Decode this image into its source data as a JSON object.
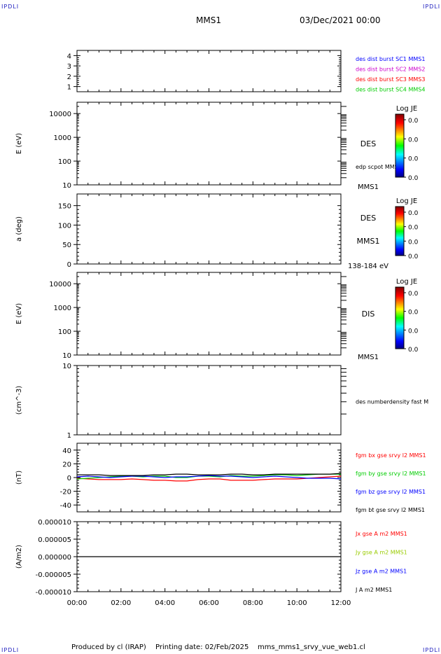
{
  "corner_tl": "IPDLI",
  "corner_tr": "IPDLI",
  "corner_bl": "IPDLI",
  "corner_br": "IPDLI",
  "header": {
    "spacecraft": "MMS1",
    "datetime": "03/Dec/2021 00:00"
  },
  "footer": {
    "produced": "Produced by cl (IRAP)",
    "printed": "Printing date: 02/Feb/2025",
    "file": "mms_mms1_srvy_vue_web1.cl"
  },
  "colors": {
    "blue": "#0000ff",
    "magenta": "#cc00cc",
    "red": "#ff0000",
    "green": "#00cc00",
    "black": "#000000"
  },
  "chart_data": [
    {
      "type": "line",
      "ylim": [
        0.5,
        4.5
      ],
      "yticks": [
        "4",
        "3",
        "2",
        "1"
      ],
      "series": [
        {
          "name": "des dist burst SC1 MMS1",
          "color": "#0000ff"
        },
        {
          "name": "des dist burst SC2 MMS2",
          "color": "#cc00cc"
        },
        {
          "name": "des dist burst SC3 MMS3",
          "color": "#ff0000"
        },
        {
          "name": "des dist burst SC4 MMS4",
          "color": "#00cc00"
        }
      ]
    },
    {
      "type": "heatmap",
      "ylabel": "E (eV)",
      "log": true,
      "ylim": [
        10,
        30000
      ],
      "yticks": [
        "10000",
        "1000",
        "100",
        "10"
      ],
      "side_label": "DES",
      "overlay_label": "edp scpot MMS1",
      "bottom_label": "MMS1",
      "colorbar": {
        "title": "Log JE",
        "ticks": [
          "0.0",
          "0.0",
          "0.0",
          "0.0"
        ]
      }
    },
    {
      "type": "heatmap",
      "ylabel": "a (deg)",
      "ylim": [
        0,
        180
      ],
      "yticks": [
        "150",
        "100",
        "50",
        "0"
      ],
      "side_label": "DES",
      "side_label2": "MMS1",
      "bottom_label": "138-184 eV",
      "colorbar": {
        "title": "Log JE",
        "ticks": [
          "0.0",
          "0.0",
          "0.0",
          "0.0"
        ]
      }
    },
    {
      "type": "heatmap",
      "ylabel": "E (eV)",
      "log": true,
      "ylim": [
        10,
        30000
      ],
      "yticks": [
        "10000",
        "1000",
        "100",
        "10"
      ],
      "side_label": "DIS",
      "bottom_label": "MMS1",
      "colorbar": {
        "title": "Log JE",
        "ticks": [
          "0.0",
          "0.0",
          "0.0",
          "0.0"
        ]
      }
    },
    {
      "type": "line",
      "ylabel": "(cm^-3)",
      "log": true,
      "ylim": [
        1,
        10
      ],
      "yticks": [
        "10",
        "1"
      ],
      "series": [
        {
          "name": "des numberdensity fast M",
          "color": "#000000"
        }
      ]
    },
    {
      "type": "line",
      "ylabel": "(nT)",
      "ylim": [
        -50,
        50
      ],
      "yticks": [
        "40",
        "20",
        "0",
        "-20",
        "-40"
      ],
      "series": [
        {
          "name": "fgm bx gse srvy l2 MMS1",
          "color": "#ff0000",
          "x": [
            0,
            0.5,
            1,
            1.5,
            2,
            2.5,
            3,
            3.5,
            4,
            4.5,
            5,
            5.5,
            6,
            6.5,
            7,
            7.5,
            8,
            8.5,
            9,
            9.5,
            10,
            10.5,
            11,
            11.5,
            12
          ],
          "values": [
            -1,
            -2,
            -3,
            -3,
            -3,
            -2,
            -3,
            -4,
            -4,
            -5,
            -5,
            -3,
            -2,
            -2,
            -4,
            -4,
            -4,
            -3,
            -2,
            -2,
            -2,
            -1,
            0,
            1,
            2
          ]
        },
        {
          "name": "fgm by gse srvy l2 MMS1",
          "color": "#00cc00",
          "x": [
            0,
            0.5,
            1,
            1.5,
            2,
            2.5,
            3,
            3.5,
            4,
            4.5,
            5,
            5.5,
            6,
            6.5,
            7,
            7.5,
            8,
            8.5,
            9,
            9.5,
            10,
            10.5,
            11,
            11.5,
            12
          ],
          "values": [
            -2,
            -1,
            0,
            1,
            2,
            2,
            1,
            2,
            2,
            0,
            0,
            2,
            2,
            1,
            3,
            2,
            2,
            3,
            4,
            4,
            3,
            4,
            5,
            5,
            5
          ]
        },
        {
          "name": "fgm bz gse srvy l2 MMS1",
          "color": "#0000ff",
          "x": [
            0,
            0.5,
            1,
            1.5,
            2,
            2.5,
            3,
            3.5,
            4,
            4.5,
            5,
            5.5,
            6,
            6.5,
            7,
            7.5,
            8,
            8.5,
            9,
            9.5,
            10,
            10.5,
            11,
            11.5,
            12
          ],
          "values": [
            1,
            2,
            1,
            0,
            1,
            2,
            2,
            1,
            0,
            1,
            1,
            2,
            3,
            2,
            2,
            1,
            0,
            1,
            2,
            1,
            0,
            -1,
            -1,
            -1,
            -2
          ]
        },
        {
          "name": "fgm bt gse srvy l2 MMS1",
          "color": "#000000",
          "x": [
            0,
            0.5,
            1,
            1.5,
            2,
            2.5,
            3,
            3.5,
            4,
            4.5,
            5,
            5.5,
            6,
            6.5,
            7,
            7.5,
            8,
            8.5,
            9,
            9.5,
            10,
            10.5,
            11,
            11.5,
            12
          ],
          "values": [
            4,
            4,
            4,
            3,
            3,
            3,
            3,
            4,
            4,
            5,
            5,
            4,
            4,
            4,
            5,
            5,
            4,
            4,
            5,
            5,
            5,
            5,
            5,
            5,
            6
          ]
        }
      ]
    },
    {
      "type": "line",
      "ylabel": "(A/m2)",
      "ylim": [
        -1e-05,
        1e-05
      ],
      "yticks": [
        "0.000010",
        "0.000005",
        "0.000000",
        "-0.000005",
        "-0.000010"
      ],
      "series": [
        {
          "name": "Jx gse A m2 MMS1",
          "color": "#ff0000"
        },
        {
          "name": "Jy gse A m2 MMS1",
          "color": "#99cc00"
        },
        {
          "name": "Jz gse A m2 MMS1",
          "color": "#0000ff"
        },
        {
          "name": "J A m2 MMS1",
          "color": "#000000",
          "x": [
            0,
            12
          ],
          "values": [
            0,
            0
          ]
        }
      ]
    }
  ],
  "x_axis": {
    "ticks": [
      "00:00",
      "02:00",
      "04:00",
      "06:00",
      "08:00",
      "10:00",
      "12:00"
    ],
    "xlim": [
      0,
      12
    ]
  }
}
